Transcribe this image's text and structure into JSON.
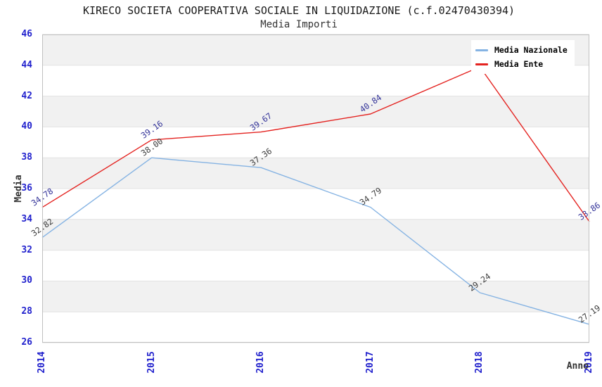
{
  "header": {
    "title": "KIRECO SOCIETA COOPERATIVA SOCIALE IN LIQUIDAZIONE (c.f.02470430394)",
    "subtitle": "Media Importi"
  },
  "axes": {
    "ylabel": "Media",
    "xlabel": "Anno",
    "yticks": [
      46,
      44,
      42,
      40,
      38,
      36,
      34,
      32,
      30,
      28,
      26
    ],
    "xticks": [
      "2014",
      "2015",
      "2016",
      "2017",
      "2018",
      "2019"
    ]
  },
  "legend": {
    "position": "top-right",
    "entries": [
      {
        "label": "Media Nazionale",
        "color": "#85b3e3"
      },
      {
        "label": "Media Ente",
        "color": "#e42320"
      }
    ]
  },
  "colors": {
    "tick_blue": "#2121cd",
    "band_gray": "#f1f1f1",
    "band_white": "#ffffff",
    "grid_line": "#e2e2e2",
    "plot_border": "#c0c0c0",
    "blue_line": "#85b3e3",
    "red_line": "#e42320",
    "label_navy": "#333399",
    "label_dark": "#3d3d3d"
  },
  "chart_data": {
    "type": "line",
    "title": "KIRECO SOCIETA COOPERATIVA SOCIALE IN LIQUIDAZIONE (c.f.02470430394)",
    "subtitle": "Media Importi",
    "xlabel": "Anno",
    "ylabel": "Media",
    "x": [
      2014,
      2015,
      2016,
      2017,
      2018,
      2019
    ],
    "ylim": [
      26,
      46
    ],
    "ytick_step": 2,
    "grid": "horizontal-bands-on",
    "legend_position": "top-right",
    "series": [
      {
        "name": "Media Nazionale",
        "color": "#85b3e3",
        "label_color": "#3d3d3d",
        "values": [
          32.82,
          38.0,
          37.36,
          34.79,
          29.24,
          27.19
        ],
        "labels": [
          "32.82",
          "38.00",
          "37.36",
          "34.79",
          "29.24",
          "27.19"
        ]
      },
      {
        "name": "Media Ente",
        "color": "#e42320",
        "label_color": "#333399",
        "values": [
          34.78,
          39.16,
          39.67,
          40.84,
          43.9,
          33.86
        ],
        "labels": [
          "34.78",
          "39.16",
          "39.67",
          "40.84",
          null,
          "33.86"
        ]
      }
    ]
  }
}
